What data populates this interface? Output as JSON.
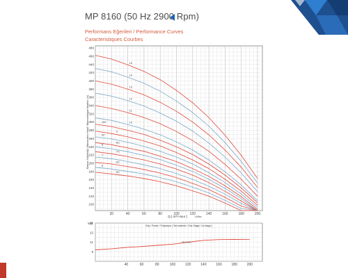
{
  "header": {
    "title": "MP 8160 (50 Hz 2900 Rpm)",
    "subtitle1": "Performans Eğerileri / Performance Curves",
    "subtitle2": "Caracteristiques Courbes"
  },
  "colors": {
    "red": "#e0473a",
    "blue": "#7aa9c9",
    "grid": "#d9d9d9",
    "axis": "#555555",
    "brand": "#1e63ad"
  },
  "chart_data": [
    {
      "type": "line",
      "title": "",
      "xlabel": "Q [ m³/ Hour ]",
      "xlabel_unit": "Lt/Sec",
      "ylabel": "Basma Yüksekliği / Manometric Head / Manometrique Hauteur (m)",
      "xlim": [
        0,
        200
      ],
      "ylim": [
        85,
        485
      ],
      "x_ticks": [
        20,
        40,
        60,
        80,
        100,
        120,
        140,
        160,
        180,
        200
      ],
      "y_ticks": [
        100,
        120,
        140,
        160,
        180,
        200,
        220,
        240,
        260,
        280,
        300,
        320,
        340,
        360,
        380,
        400,
        420,
        440,
        460,
        480
      ],
      "stage_labels": [
        "15",
        "14",
        "13",
        "12",
        "11",
        "10",
        "10C",
        "9",
        "9C",
        "8C",
        "8",
        "7C",
        "7",
        "6C",
        "6",
        "5C"
      ],
      "x": [
        0,
        20,
        40,
        60,
        80,
        100,
        120,
        140,
        160,
        180,
        200
      ],
      "series": [
        {
          "color": "red",
          "label": "15",
          "values": [
            462,
            453,
            439,
            423,
            403,
            377,
            347,
            311,
            268,
            219,
            163
          ]
        },
        {
          "color": "blue",
          "label": "14",
          "values": [
            430,
            422,
            409,
            394,
            375,
            351,
            323,
            290,
            250,
            204,
            152
          ]
        },
        {
          "color": "red",
          "label": "13",
          "values": [
            400,
            392,
            380,
            366,
            348,
            326,
            300,
            269,
            232,
            190,
            141
          ]
        },
        {
          "color": "blue",
          "label": "12",
          "values": [
            370,
            363,
            352,
            339,
            322,
            302,
            278,
            249,
            215,
            176,
            131
          ]
        },
        {
          "color": "red",
          "label": "11",
          "values": [
            340,
            333,
            323,
            311,
            296,
            277,
            255,
            229,
            197,
            161,
            120
          ]
        },
        {
          "color": "blue",
          "label": "10",
          "values": [
            310,
            304,
            294,
            283,
            269,
            252,
            232,
            208,
            179,
            147,
            109
          ]
        },
        {
          "color": "red",
          "label": "10C",
          "values": [
            295,
            289,
            280,
            270,
            256,
            240,
            221,
            198,
            171,
            140,
            104
          ]
        },
        {
          "color": "red",
          "label": "9",
          "values": [
            278,
            272,
            264,
            254,
            242,
            226,
            208,
            187,
            161,
            132,
            98
          ]
        },
        {
          "color": "blue",
          "label": "9C",
          "values": [
            264,
            259,
            251,
            241,
            229,
            215,
            198,
            177,
            153,
            125,
            93
          ]
        },
        {
          "color": "red",
          "label": "8C",
          "values": [
            250,
            245,
            237,
            229,
            217,
            204,
            187,
            168,
            145,
            119,
            88
          ]
        },
        {
          "color": "blue",
          "label": "8",
          "values": [
            240,
            235,
            228,
            219,
            209,
            195,
            180,
            161,
            139,
            114,
            85
          ]
        },
        {
          "color": "red",
          "label": "7C",
          "values": [
            228,
            223,
            216,
            208,
            198,
            186,
            171,
            153,
            132,
            108,
            85
          ]
        },
        {
          "color": "blue",
          "label": "7",
          "values": [
            215,
            211,
            204,
            196,
            187,
            175,
            161,
            144,
            125,
            102,
            85
          ]
        },
        {
          "color": "red",
          "label": "6C",
          "values": [
            202,
            198,
            192,
            185,
            176,
            165,
            151,
            136,
            117,
            96,
            85
          ]
        },
        {
          "color": "blue",
          "label": "6",
          "values": [
            190,
            186,
            180,
            174,
            165,
            155,
            142,
            128,
            110,
            90,
            85
          ]
        },
        {
          "color": "red",
          "label": "5C",
          "values": [
            178,
            174,
            169,
            163,
            155,
            145,
            133,
            120,
            103,
            85,
            85
          ]
        }
      ]
    },
    {
      "type": "line",
      "title": "Güç / Power / Puissance ( Tek kademe / One Stage / Un étage )",
      "ylabel": "kW",
      "xlim": [
        0,
        210
      ],
      "ylim": [
        7,
        15
      ],
      "x_ticks": [
        40,
        60,
        80,
        100,
        120,
        140,
        160,
        180,
        200
      ],
      "y_ticks": [
        9,
        11,
        13,
        15
      ],
      "annotation": "Nominal",
      "x": [
        0,
        20,
        40,
        60,
        80,
        100,
        120,
        140,
        160,
        180,
        200
      ],
      "series": [
        {
          "color": "red",
          "values": [
            9.4,
            9.6,
            9.9,
            10.1,
            10.35,
            10.6,
            11.0,
            11.4,
            11.55,
            11.6,
            11.55
          ]
        }
      ]
    }
  ]
}
